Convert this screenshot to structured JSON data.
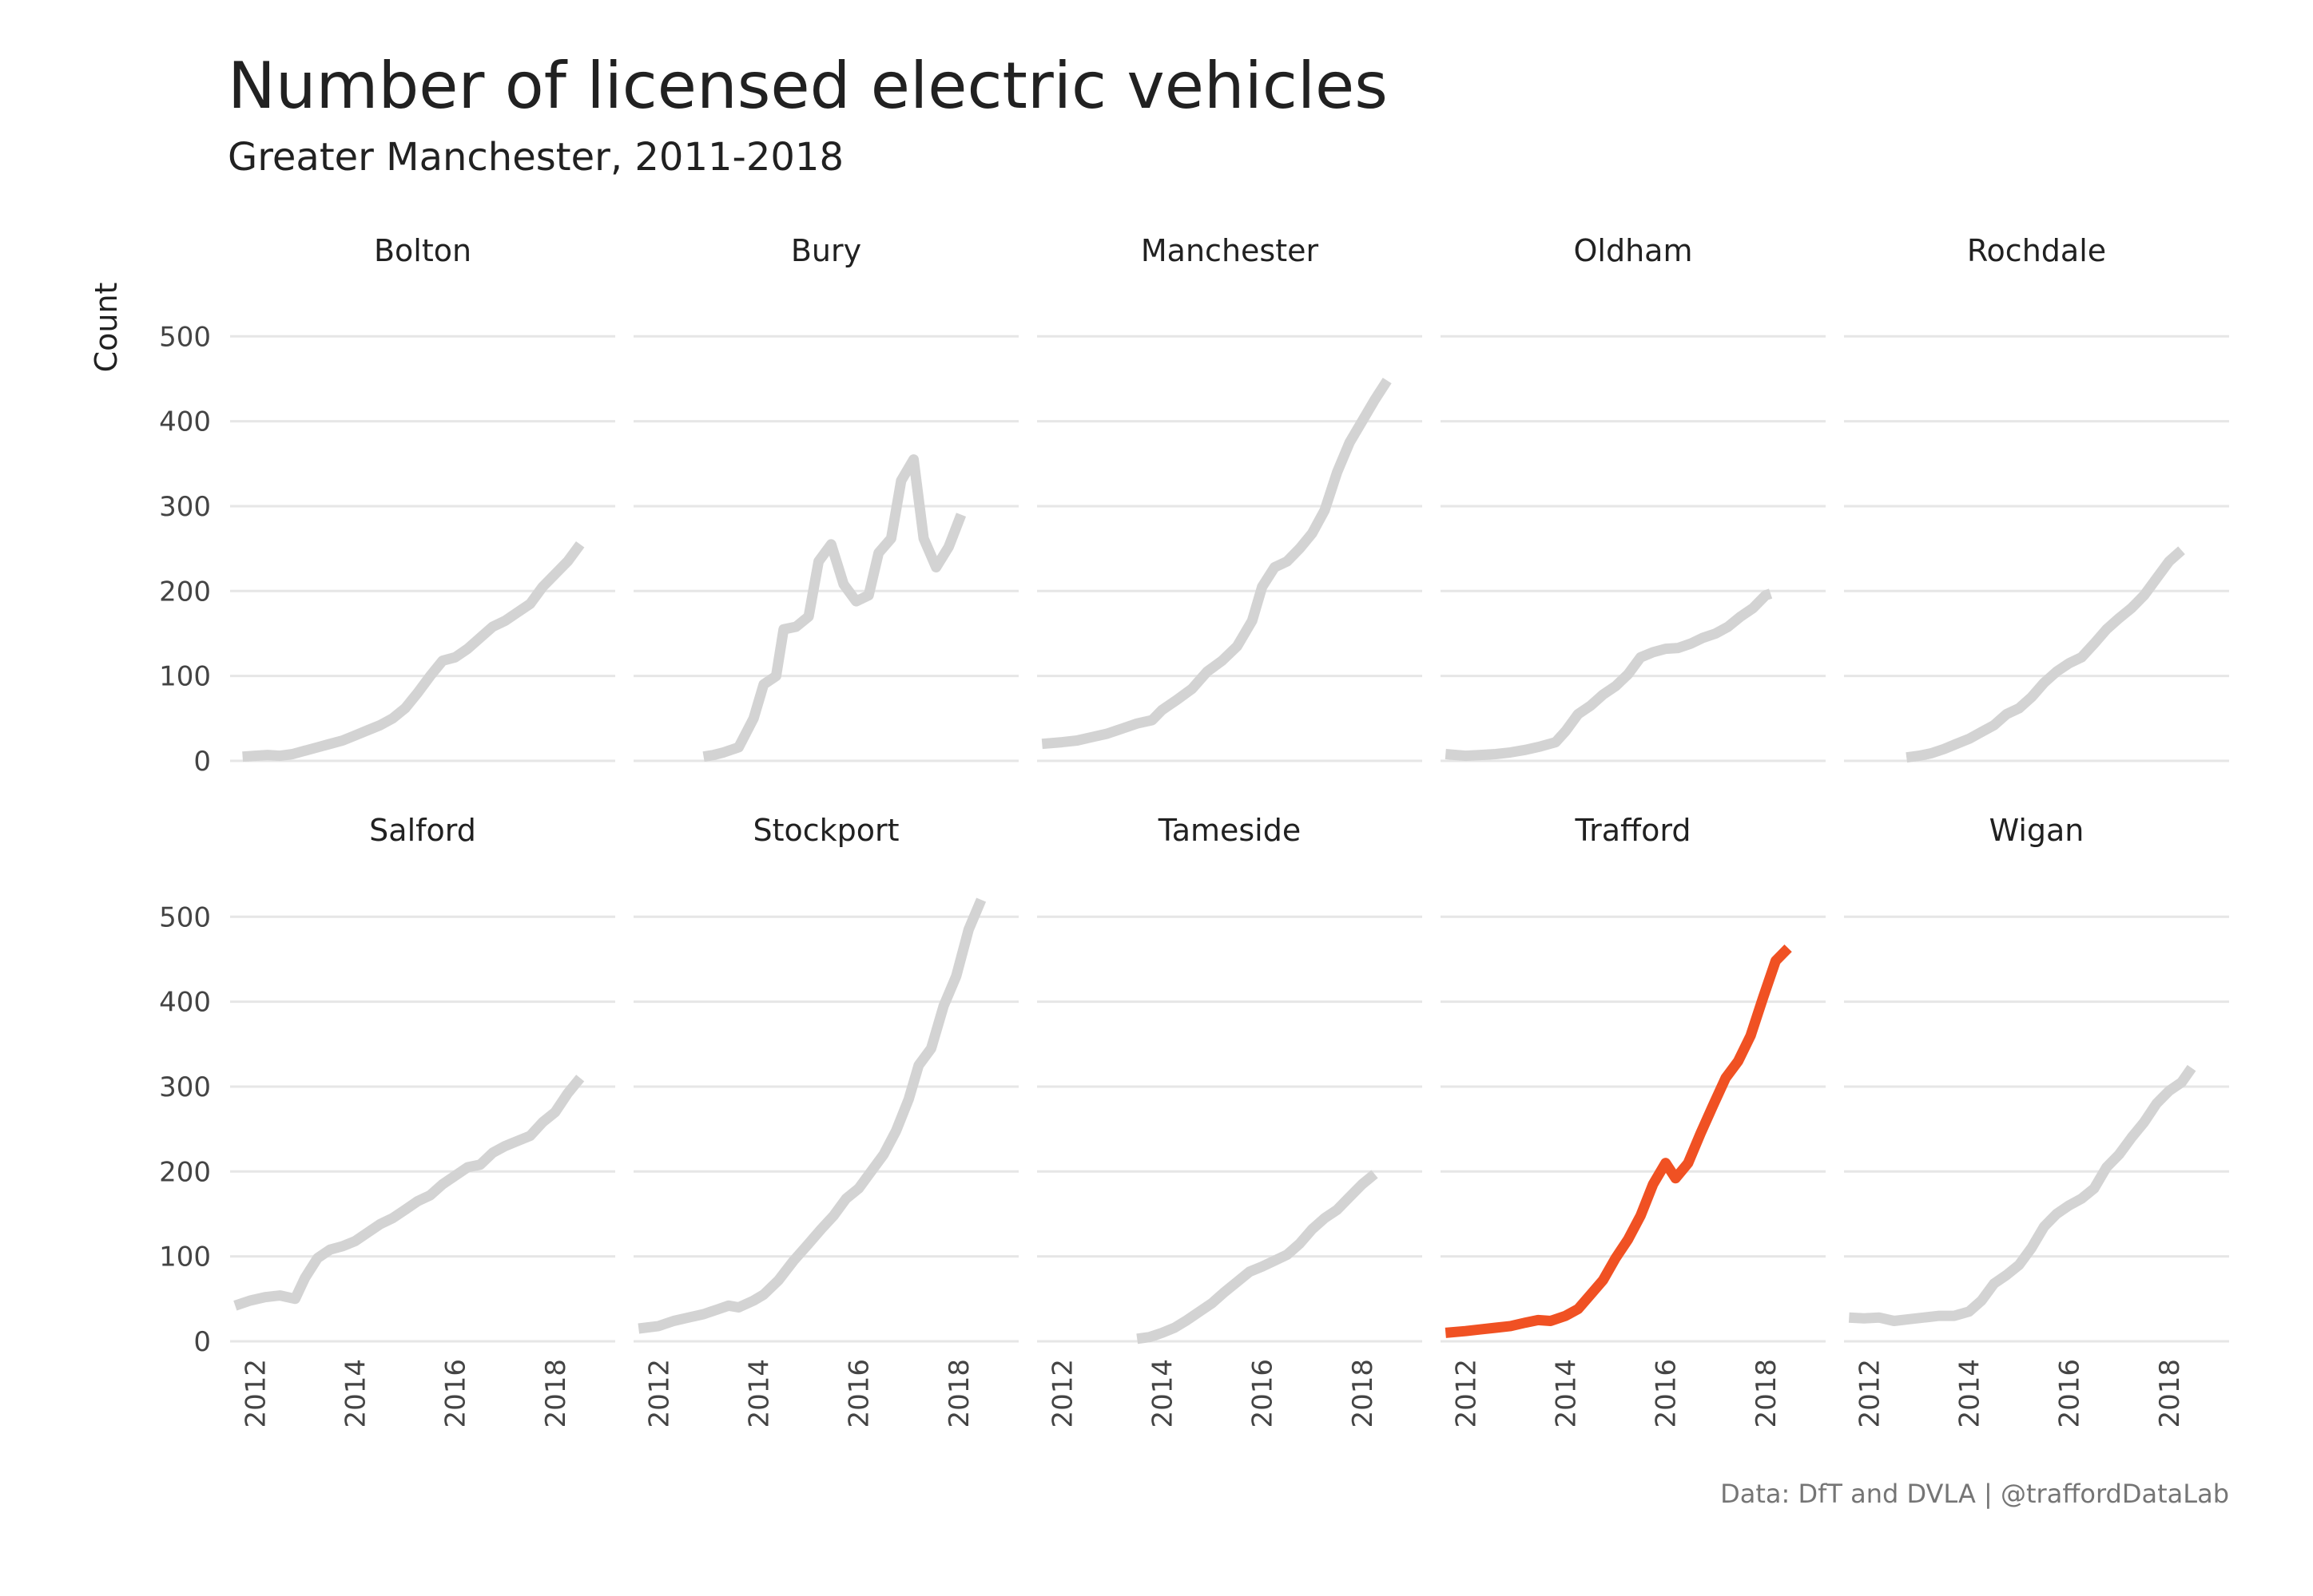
{
  "chart_data": {
    "type": "line",
    "title": "Number of licensed electric vehicles",
    "subtitle": "Greater Manchester, 2011-2018",
    "ylabel": "Count",
    "xlabel": "",
    "caption": "Data: DfT and DVLA | @traffordDataLab",
    "xlim": [
      2011.5,
      2019.2
    ],
    "ylim": [
      0,
      520
    ],
    "x_ticks": [
      2012,
      2014,
      2016,
      2018
    ],
    "y_ticks": [
      0,
      100,
      200,
      300,
      400,
      500
    ],
    "layout": "facet 5x2",
    "colors": {
      "highlight": "#f05123",
      "default": "#d3d3d3"
    },
    "highlight": "Trafford",
    "series": [
      {
        "name": "Bolton",
        "points": [
          [
            2011.75,
            5
          ],
          [
            2012,
            6
          ],
          [
            2012.25,
            7
          ],
          [
            2012.5,
            6
          ],
          [
            2012.75,
            8
          ],
          [
            2013,
            12
          ],
          [
            2013.25,
            16
          ],
          [
            2013.5,
            20
          ],
          [
            2013.75,
            24
          ],
          [
            2014,
            30
          ],
          [
            2014.25,
            36
          ],
          [
            2014.5,
            42
          ],
          [
            2014.75,
            50
          ],
          [
            2015,
            62
          ],
          [
            2015.25,
            80
          ],
          [
            2015.5,
            100
          ],
          [
            2015.75,
            118
          ],
          [
            2016,
            122
          ],
          [
            2016.25,
            132
          ],
          [
            2016.5,
            145
          ],
          [
            2016.75,
            158
          ],
          [
            2017,
            165
          ],
          [
            2017.25,
            175
          ],
          [
            2017.5,
            185
          ],
          [
            2017.75,
            205
          ],
          [
            2018,
            220
          ],
          [
            2018.25,
            235
          ],
          [
            2018.5,
            255
          ]
        ]
      },
      {
        "name": "Bury",
        "points": [
          [
            2012.9,
            5
          ],
          [
            2013.1,
            7
          ],
          [
            2013.3,
            10
          ],
          [
            2013.6,
            16
          ],
          [
            2013.9,
            50
          ],
          [
            2014.1,
            90
          ],
          [
            2014.35,
            100
          ],
          [
            2014.5,
            155
          ],
          [
            2014.75,
            158
          ],
          [
            2015,
            170
          ],
          [
            2015.2,
            235
          ],
          [
            2015.45,
            255
          ],
          [
            2015.7,
            208
          ],
          [
            2015.95,
            188
          ],
          [
            2016.2,
            195
          ],
          [
            2016.4,
            245
          ],
          [
            2016.65,
            262
          ],
          [
            2016.85,
            330
          ],
          [
            2017.1,
            355
          ],
          [
            2017.3,
            262
          ],
          [
            2017.55,
            228
          ],
          [
            2017.8,
            252
          ],
          [
            2018.05,
            290
          ]
        ]
      },
      {
        "name": "Manchester",
        "points": [
          [
            2011.6,
            20
          ],
          [
            2012,
            22
          ],
          [
            2012.3,
            24
          ],
          [
            2012.6,
            28
          ],
          [
            2012.9,
            32
          ],
          [
            2013.2,
            38
          ],
          [
            2013.5,
            44
          ],
          [
            2013.8,
            48
          ],
          [
            2014,
            60
          ],
          [
            2014.3,
            72
          ],
          [
            2014.6,
            85
          ],
          [
            2014.9,
            105
          ],
          [
            2015.2,
            118
          ],
          [
            2015.5,
            135
          ],
          [
            2015.8,
            165
          ],
          [
            2016,
            205
          ],
          [
            2016.25,
            228
          ],
          [
            2016.5,
            235
          ],
          [
            2016.75,
            250
          ],
          [
            2017,
            268
          ],
          [
            2017.25,
            295
          ],
          [
            2017.5,
            340
          ],
          [
            2017.75,
            375
          ],
          [
            2018,
            400
          ],
          [
            2018.25,
            425
          ],
          [
            2018.5,
            448
          ]
        ]
      },
      {
        "name": "Oldham",
        "points": [
          [
            2011.6,
            8
          ],
          [
            2012,
            6
          ],
          [
            2012.3,
            7
          ],
          [
            2012.6,
            8
          ],
          [
            2012.9,
            10
          ],
          [
            2013.2,
            13
          ],
          [
            2013.5,
            17
          ],
          [
            2013.8,
            22
          ],
          [
            2014,
            35
          ],
          [
            2014.25,
            55
          ],
          [
            2014.5,
            65
          ],
          [
            2014.75,
            78
          ],
          [
            2015,
            88
          ],
          [
            2015.25,
            102
          ],
          [
            2015.5,
            122
          ],
          [
            2015.75,
            128
          ],
          [
            2016,
            132
          ],
          [
            2016.25,
            133
          ],
          [
            2016.5,
            138
          ],
          [
            2016.75,
            145
          ],
          [
            2017,
            150
          ],
          [
            2017.25,
            158
          ],
          [
            2017.5,
            170
          ],
          [
            2017.75,
            180
          ],
          [
            2018,
            195
          ],
          [
            2018.1,
            197
          ]
        ]
      },
      {
        "name": "Rochdale",
        "points": [
          [
            2012.75,
            4
          ],
          [
            2013,
            6
          ],
          [
            2013.25,
            9
          ],
          [
            2013.5,
            14
          ],
          [
            2013.75,
            20
          ],
          [
            2014,
            26
          ],
          [
            2014.25,
            34
          ],
          [
            2014.5,
            42
          ],
          [
            2014.75,
            55
          ],
          [
            2015,
            62
          ],
          [
            2015.25,
            75
          ],
          [
            2015.5,
            92
          ],
          [
            2015.75,
            105
          ],
          [
            2016,
            115
          ],
          [
            2016.25,
            122
          ],
          [
            2016.5,
            138
          ],
          [
            2016.75,
            155
          ],
          [
            2017,
            168
          ],
          [
            2017.25,
            180
          ],
          [
            2017.5,
            195
          ],
          [
            2017.75,
            215
          ],
          [
            2018,
            235
          ],
          [
            2018.25,
            248
          ]
        ]
      },
      {
        "name": "Salford",
        "points": [
          [
            2011.6,
            42
          ],
          [
            2011.9,
            48
          ],
          [
            2012.2,
            52
          ],
          [
            2012.5,
            54
          ],
          [
            2012.8,
            50
          ],
          [
            2013,
            75
          ],
          [
            2013.25,
            98
          ],
          [
            2013.5,
            108
          ],
          [
            2013.75,
            112
          ],
          [
            2014,
            118
          ],
          [
            2014.25,
            128
          ],
          [
            2014.5,
            138
          ],
          [
            2014.75,
            145
          ],
          [
            2015,
            155
          ],
          [
            2015.25,
            165
          ],
          [
            2015.5,
            172
          ],
          [
            2015.75,
            185
          ],
          [
            2016,
            195
          ],
          [
            2016.25,
            205
          ],
          [
            2016.5,
            208
          ],
          [
            2016.75,
            222
          ],
          [
            2017,
            230
          ],
          [
            2017.25,
            236
          ],
          [
            2017.5,
            242
          ],
          [
            2017.75,
            258
          ],
          [
            2018,
            270
          ],
          [
            2018.25,
            292
          ],
          [
            2018.5,
            310
          ]
        ]
      },
      {
        "name": "Stockport",
        "points": [
          [
            2011.6,
            15
          ],
          [
            2012,
            18
          ],
          [
            2012.3,
            24
          ],
          [
            2012.6,
            28
          ],
          [
            2012.9,
            32
          ],
          [
            2013.2,
            38
          ],
          [
            2013.4,
            42
          ],
          [
            2013.6,
            40
          ],
          [
            2013.9,
            48
          ],
          [
            2014.1,
            55
          ],
          [
            2014.4,
            72
          ],
          [
            2014.7,
            95
          ],
          [
            2015,
            115
          ],
          [
            2015.25,
            132
          ],
          [
            2015.5,
            148
          ],
          [
            2015.75,
            168
          ],
          [
            2016,
            180
          ],
          [
            2016.25,
            200
          ],
          [
            2016.5,
            220
          ],
          [
            2016.75,
            248
          ],
          [
            2017,
            285
          ],
          [
            2017.2,
            325
          ],
          [
            2017.45,
            345
          ],
          [
            2017.7,
            395
          ],
          [
            2017.95,
            430
          ],
          [
            2018.2,
            485
          ],
          [
            2018.45,
            520
          ]
        ]
      },
      {
        "name": "Tameside",
        "points": [
          [
            2013.5,
            3
          ],
          [
            2013.75,
            5
          ],
          [
            2014,
            10
          ],
          [
            2014.25,
            16
          ],
          [
            2014.5,
            25
          ],
          [
            2014.75,
            35
          ],
          [
            2015,
            45
          ],
          [
            2015.25,
            58
          ],
          [
            2015.5,
            70
          ],
          [
            2015.75,
            82
          ],
          [
            2016,
            88
          ],
          [
            2016.25,
            95
          ],
          [
            2016.5,
            102
          ],
          [
            2016.75,
            115
          ],
          [
            2017,
            132
          ],
          [
            2017.25,
            145
          ],
          [
            2017.5,
            155
          ],
          [
            2017.75,
            170
          ],
          [
            2018,
            185
          ],
          [
            2018.25,
            197
          ]
        ]
      },
      {
        "name": "Trafford",
        "points": [
          [
            2011.6,
            10
          ],
          [
            2012,
            12
          ],
          [
            2012.3,
            14
          ],
          [
            2012.6,
            16
          ],
          [
            2012.9,
            18
          ],
          [
            2013.2,
            22
          ],
          [
            2013.45,
            25
          ],
          [
            2013.7,
            24
          ],
          [
            2014,
            30
          ],
          [
            2014.25,
            38
          ],
          [
            2014.5,
            55
          ],
          [
            2014.75,
            72
          ],
          [
            2015,
            98
          ],
          [
            2015.25,
            120
          ],
          [
            2015.5,
            148
          ],
          [
            2015.75,
            185
          ],
          [
            2016,
            210
          ],
          [
            2016.2,
            192
          ],
          [
            2016.45,
            210
          ],
          [
            2016.7,
            245
          ],
          [
            2016.95,
            278
          ],
          [
            2017.2,
            310
          ],
          [
            2017.45,
            330
          ],
          [
            2017.7,
            360
          ],
          [
            2017.95,
            405
          ],
          [
            2018.2,
            448
          ],
          [
            2018.45,
            463
          ]
        ]
      },
      {
        "name": "Wigan",
        "points": [
          [
            2011.6,
            28
          ],
          [
            2011.9,
            27
          ],
          [
            2012.2,
            28
          ],
          [
            2012.5,
            24
          ],
          [
            2012.8,
            26
          ],
          [
            2013.1,
            28
          ],
          [
            2013.4,
            30
          ],
          [
            2013.7,
            30
          ],
          [
            2014,
            35
          ],
          [
            2014.25,
            48
          ],
          [
            2014.5,
            68
          ],
          [
            2014.75,
            78
          ],
          [
            2015,
            90
          ],
          [
            2015.25,
            110
          ],
          [
            2015.5,
            135
          ],
          [
            2015.75,
            150
          ],
          [
            2016,
            160
          ],
          [
            2016.25,
            168
          ],
          [
            2016.5,
            180
          ],
          [
            2016.75,
            205
          ],
          [
            2017,
            220
          ],
          [
            2017.25,
            240
          ],
          [
            2017.5,
            258
          ],
          [
            2017.75,
            280
          ],
          [
            2018,
            295
          ],
          [
            2018.25,
            305
          ],
          [
            2018.45,
            322
          ]
        ]
      }
    ]
  }
}
